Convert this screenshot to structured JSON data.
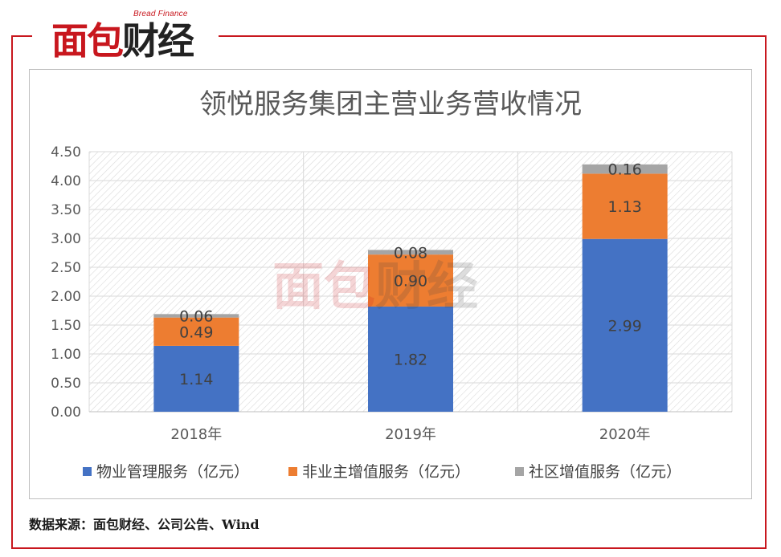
{
  "logo": {
    "en": "Bread Finance",
    "cn_red": "面包",
    "cn_dark": "财经"
  },
  "source_note": "数据来源：面包财经、公司公告、Wind",
  "colors": {
    "frame": "#c8171e",
    "property_management": "#4472c4",
    "non_owner_value_added": "#ed7d31",
    "community_value_added": "#a5a5a5"
  },
  "chart_data": {
    "type": "bar",
    "stacked": true,
    "title": "领悦服务集团主营业务营收情况",
    "categories": [
      "2018年",
      "2019年",
      "2020年"
    ],
    "series": [
      {
        "name": "物业管理服务（亿元）",
        "values": [
          1.14,
          1.82,
          2.99
        ],
        "color": "#4472c4"
      },
      {
        "name": "非业主增值服务（亿元）",
        "values": [
          0.49,
          0.9,
          1.13
        ],
        "color": "#ed7d31"
      },
      {
        "name": "社区增值服务（亿元）",
        "values": [
          0.06,
          0.08,
          0.16
        ],
        "color": "#a5a5a5"
      }
    ],
    "data_labels": [
      [
        "1.14",
        "1.82",
        "2.99"
      ],
      [
        "0.49",
        "0.90",
        "1.13"
      ],
      [
        "0.06",
        "0.08",
        "0.16"
      ]
    ],
    "y_ticks": [
      "0.00",
      "0.50",
      "1.00",
      "1.50",
      "2.00",
      "2.50",
      "3.00",
      "3.50",
      "4.00",
      "4.50"
    ],
    "ylim": [
      0,
      4.5
    ],
    "xlabel": "",
    "ylabel": "",
    "grid": true,
    "legend_position": "bottom"
  }
}
